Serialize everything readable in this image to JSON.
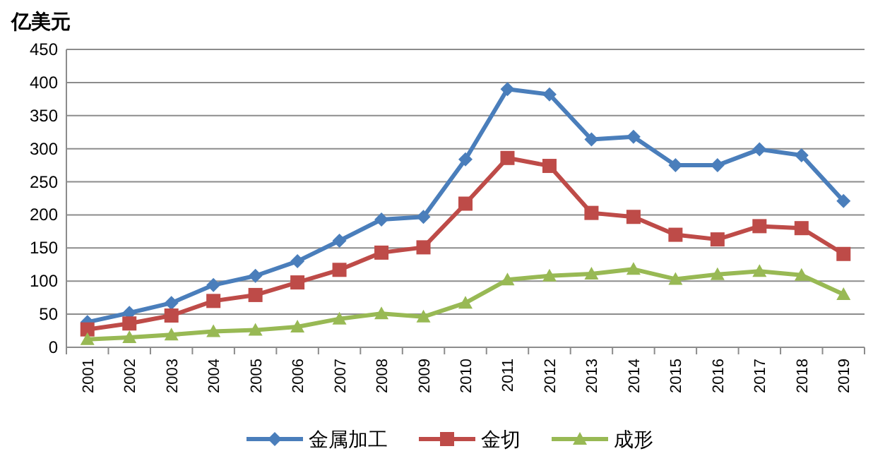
{
  "chart_data": {
    "type": "line",
    "ylabel": "亿美元",
    "categories": [
      "2001",
      "2002",
      "2003",
      "2004",
      "2005",
      "2006",
      "2007",
      "2008",
      "2009",
      "2010",
      "2011",
      "2012",
      "2013",
      "2014",
      "2015",
      "2016",
      "2017",
      "2018",
      "2019"
    ],
    "series": [
      {
        "name": "金属加工",
        "color": "#4a7ebb",
        "marker": "diamond",
        "values": [
          38,
          52,
          67,
          94,
          108,
          130,
          161,
          193,
          197,
          284,
          390,
          382,
          314,
          318,
          275,
          275,
          299,
          290,
          221
        ]
      },
      {
        "name": "金切",
        "color": "#be4b48",
        "marker": "square",
        "values": [
          27,
          36,
          48,
          70,
          79,
          98,
          117,
          143,
          151,
          217,
          286,
          274,
          203,
          197,
          170,
          163,
          183,
          180,
          141
        ]
      },
      {
        "name": "成形",
        "color": "#98b954",
        "marker": "triangle",
        "values": [
          12,
          15,
          19,
          24,
          26,
          31,
          43,
          51,
          46,
          67,
          102,
          108,
          111,
          118,
          103,
          110,
          115,
          109,
          80
        ]
      }
    ],
    "ylim": [
      0,
      450
    ],
    "yticks": [
      0,
      50,
      100,
      150,
      200,
      250,
      300,
      350,
      400,
      450
    ],
    "grid": "y",
    "legend": "bottom",
    "line_style": "solid"
  }
}
